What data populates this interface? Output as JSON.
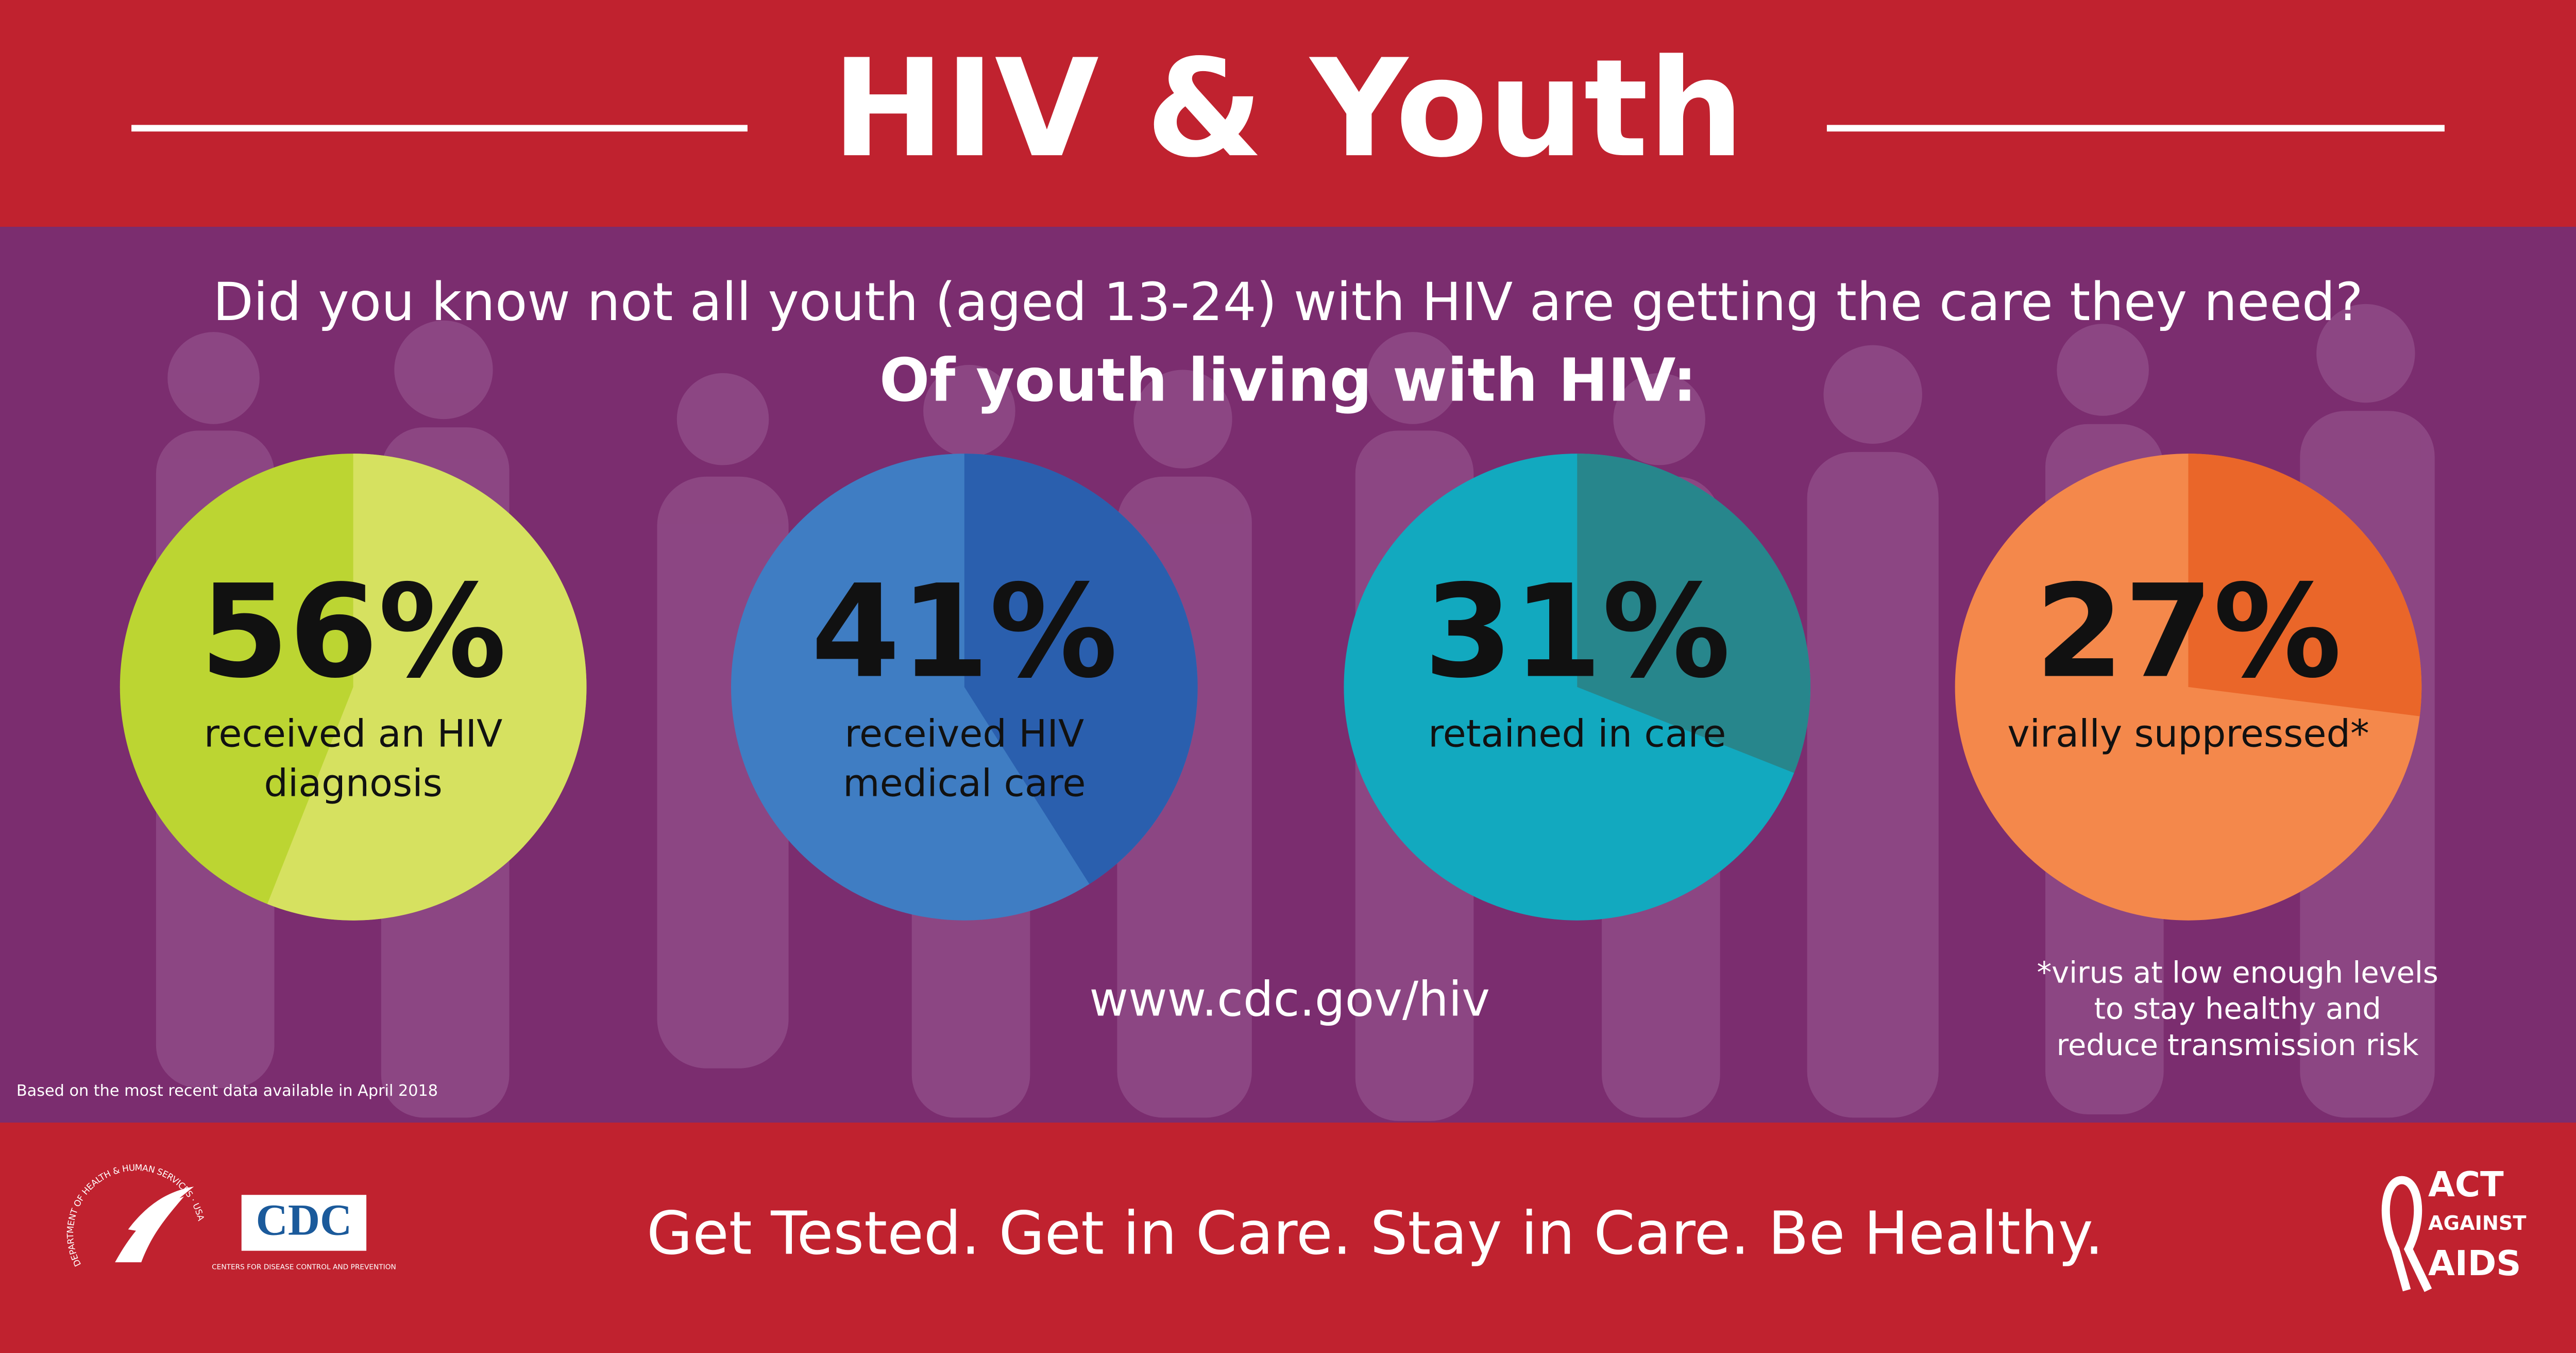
{
  "header": {
    "title": "HIV & Youth"
  },
  "intro": {
    "question": "Did you know not all youth (aged 13-24) with HIV are getting the care they need?",
    "lead": "Of youth living with HIV:"
  },
  "chart_data": [
    {
      "type": "pie",
      "values": [
        56
      ],
      "value_labels": [
        "56%"
      ],
      "caption": [
        "received an HIV",
        "diagnosis"
      ],
      "color": "#d6e160",
      "background_color": "#bcd532"
    },
    {
      "type": "pie",
      "values": [
        41
      ],
      "value_labels": [
        "41%"
      ],
      "caption": [
        "received HIV",
        "medical care"
      ],
      "color": "#2a5fae",
      "background_color": "#3f7dc3"
    },
    {
      "type": "pie",
      "values": [
        31
      ],
      "value_labels": [
        "31%"
      ],
      "caption": [
        "retained in care"
      ],
      "color": "#27868c",
      "background_color": "#12a9bf"
    },
    {
      "type": "pie",
      "values": [
        27
      ],
      "value_labels": [
        "27%"
      ],
      "caption": [
        "virally suppressed*"
      ],
      "color": "#ea6629",
      "background_color": "#f4884b"
    }
  ],
  "footnote": [
    "*virus at low enough levels",
    "to stay healthy and",
    "reduce transmission risk"
  ],
  "url": "www.cdc.gov/hiv",
  "source_note": "Based on the most recent data available in April 2018",
  "footer": {
    "tagline": "Get Tested. Get in Care. Stay in Care. Be Healthy.",
    "hhs_seal": "DEPARTMENT OF HEALTH & HUMAN SERVICES · USA",
    "cdc_logo": "CDC",
    "cdc_subtitle": "CENTERS FOR DISEASE CONTROL AND PREVENTION",
    "campaign": [
      "ACT",
      "AGAINST",
      "AIDS"
    ]
  }
}
